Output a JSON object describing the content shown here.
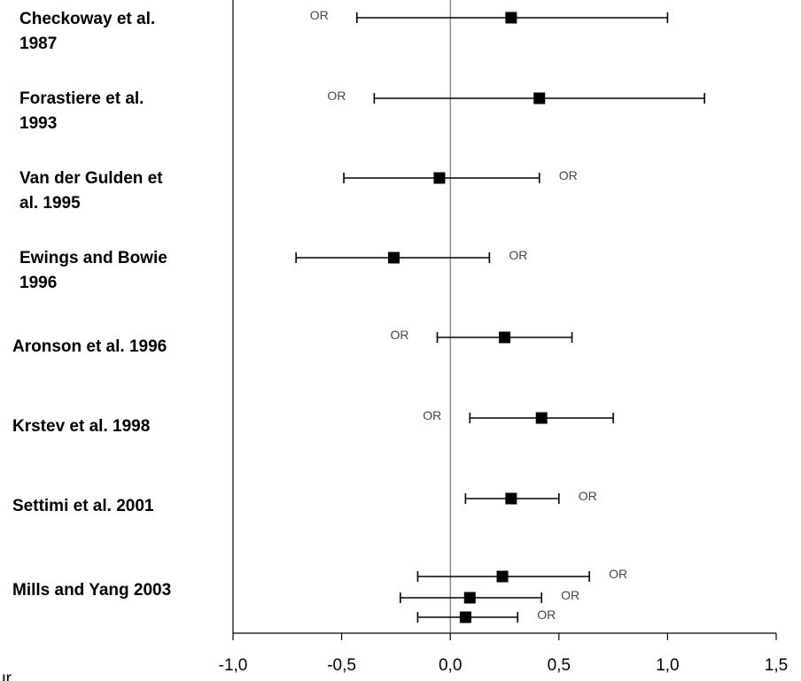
{
  "chart_data": {
    "type": "forest",
    "title": "",
    "xlabel": "",
    "ylabel": "",
    "xlim": [
      -1.0,
      1.5
    ],
    "x_ticks": [
      {
        "value": -1.0,
        "label": "-1,0"
      },
      {
        "value": -0.5,
        "label": "-0,5"
      },
      {
        "value": 0.0,
        "label": "0,0"
      },
      {
        "value": 0.5,
        "label": "0,5"
      },
      {
        "value": 1.0,
        "label": "1,0"
      },
      {
        "value": 1.5,
        "label": "1,5"
      }
    ],
    "reference_line": 0.0,
    "grid": false,
    "studies": [
      {
        "lines": [
          "Checkoway et al.",
          "1987"
        ]
      },
      {
        "lines": [
          "Forastiere et al.",
          "1993"
        ]
      },
      {
        "lines": [
          "Van der Gulden et",
          "al. 1995"
        ]
      },
      {
        "lines": [
          "Ewings and Bowie",
          "1996"
        ]
      },
      {
        "lines": [
          "Aronson et al. 1996"
        ]
      },
      {
        "lines": [
          "Krstev et al. 1998"
        ]
      },
      {
        "lines": [
          "Settimi et al. 2001"
        ]
      },
      {
        "lines": [
          "Mills and Yang  2003"
        ]
      }
    ],
    "estimates": [
      {
        "study": 0,
        "point": 0.28,
        "low": -0.43,
        "high": 1.0,
        "label": "OR",
        "label_side": "left"
      },
      {
        "study": 1,
        "point": 0.41,
        "low": -0.35,
        "high": 1.17,
        "label": "OR",
        "label_side": "left"
      },
      {
        "study": 2,
        "point": -0.05,
        "low": -0.49,
        "high": 0.41,
        "label": "OR",
        "label_side": "right"
      },
      {
        "study": 3,
        "point": -0.26,
        "low": -0.71,
        "high": 0.18,
        "label": "OR",
        "label_side": "right"
      },
      {
        "study": 4,
        "point": 0.25,
        "low": -0.06,
        "high": 0.56,
        "label": "OR",
        "label_side": "left"
      },
      {
        "study": 5,
        "point": 0.42,
        "low": 0.09,
        "high": 0.75,
        "label": "OR",
        "label_side": "left"
      },
      {
        "study": 6,
        "point": 0.28,
        "low": 0.07,
        "high": 0.5,
        "label": "OR",
        "label_side": "right"
      },
      {
        "study": 7,
        "point": 0.24,
        "low": -0.15,
        "high": 0.64,
        "label": "OR",
        "label_side": "right"
      },
      {
        "study": 7,
        "point": 0.09,
        "low": -0.23,
        "high": 0.42,
        "label": "OR",
        "label_side": "right"
      },
      {
        "study": 7,
        "point": 0.07,
        "low": -0.15,
        "high": 0.31,
        "label": "OR",
        "label_side": "right"
      }
    ],
    "cropped_text": "ur"
  }
}
